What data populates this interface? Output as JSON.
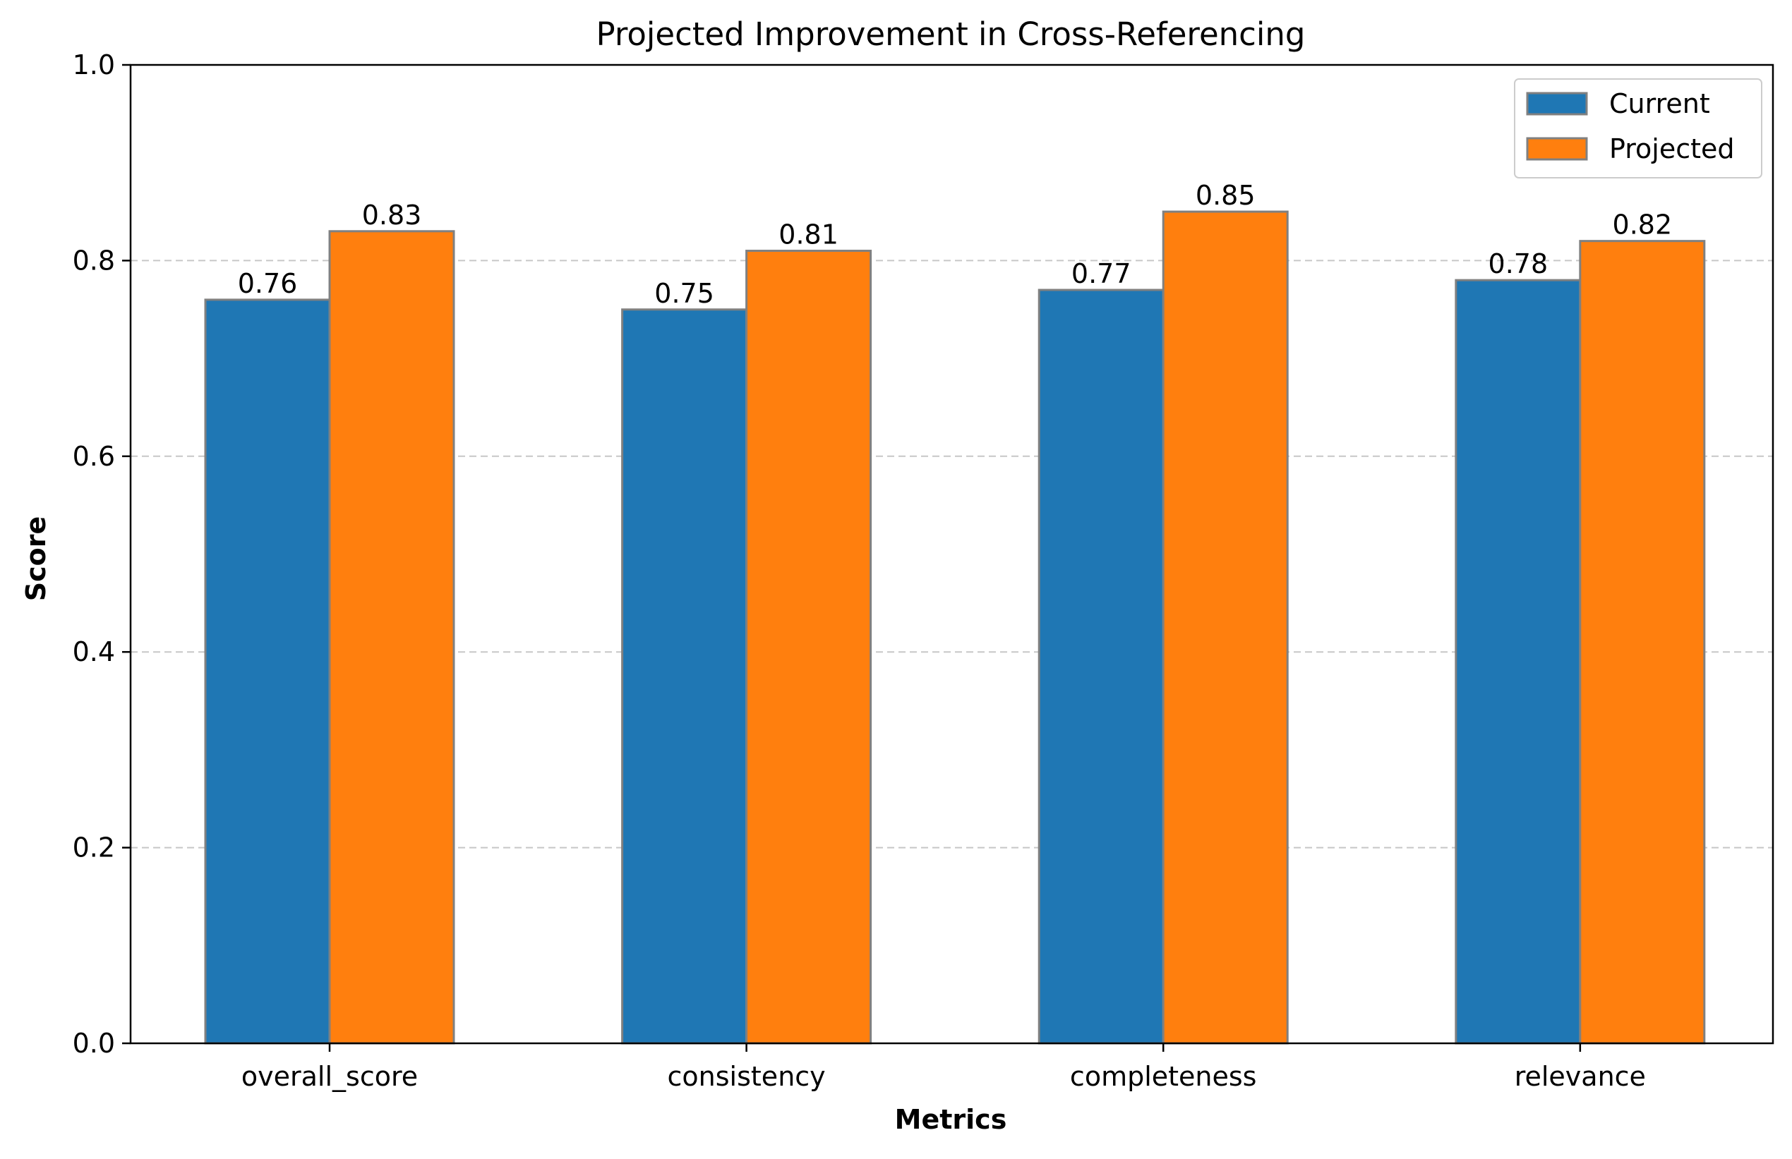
{
  "chart_data": {
    "type": "bar",
    "title": "Projected Improvement in Cross-Referencing",
    "xlabel": "Metrics",
    "ylabel": "Score",
    "ylim": [
      0,
      1.0
    ],
    "yticks": [
      0.0,
      0.2,
      0.4,
      0.6,
      0.8,
      1.0
    ],
    "ytick_labels": [
      "0.0",
      "0.2",
      "0.4",
      "0.6",
      "0.8",
      "1.0"
    ],
    "grid": "y-axis dashed",
    "legend_position": "top-right",
    "categories": [
      "overall_score",
      "consistency",
      "completeness",
      "relevance"
    ],
    "series": [
      {
        "name": "Current",
        "color": "#1f77b4",
        "values": [
          0.76,
          0.75,
          0.77,
          0.78
        ],
        "labels": [
          "0.76",
          "0.75",
          "0.77",
          "0.78"
        ]
      },
      {
        "name": "Projected",
        "color": "#ff7f0e",
        "values": [
          0.83,
          0.81,
          0.85,
          0.82
        ],
        "labels": [
          "0.83",
          "0.81",
          "0.85",
          "0.82"
        ]
      }
    ]
  }
}
